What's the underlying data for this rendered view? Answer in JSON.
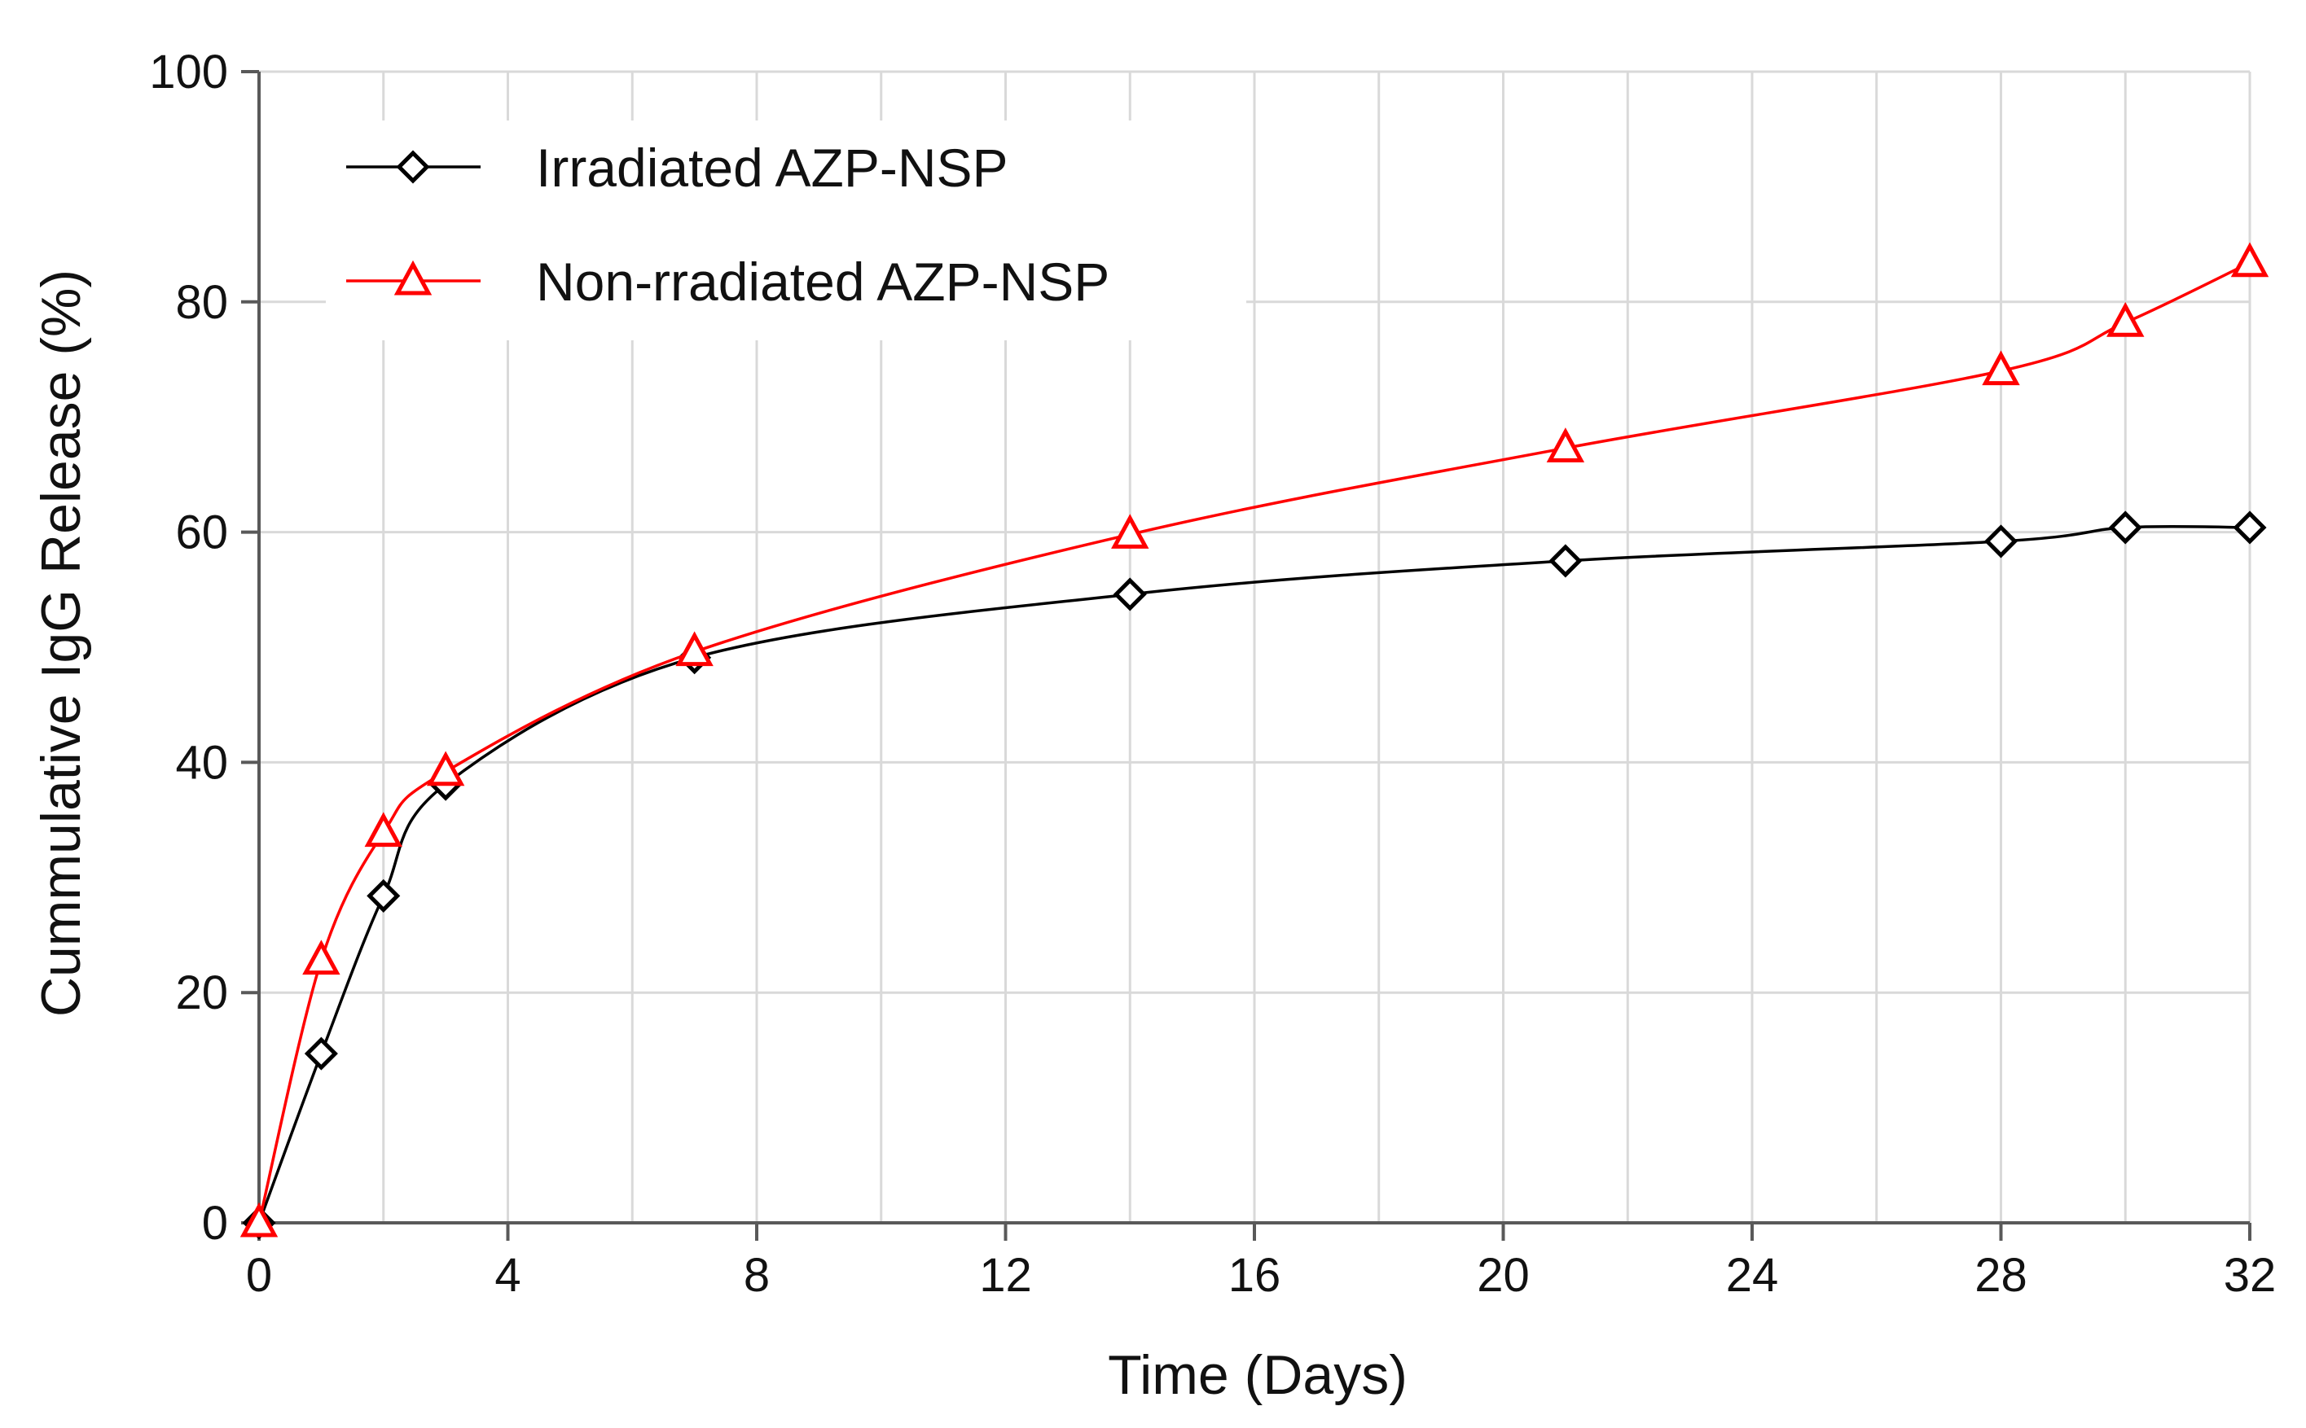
{
  "chart_data": {
    "type": "line",
    "title": "",
    "xlabel": "Time (Days)",
    "ylabel": "Cummulative IgG Release (%)",
    "xlim": [
      0,
      32
    ],
    "ylim": [
      0,
      100
    ],
    "xticks": [
      0,
      4,
      8,
      12,
      16,
      20,
      24,
      28,
      32
    ],
    "yticks": [
      0,
      20,
      40,
      60,
      80,
      100
    ],
    "x_minor_step": 2,
    "grid": true,
    "legend_position": "top-left",
    "series": [
      {
        "name": "Irradiated AZP-NSP",
        "color": "#000000",
        "marker": "diamond",
        "x": [
          0,
          1,
          2,
          3,
          7,
          14,
          21,
          28,
          30,
          32
        ],
        "y": [
          0,
          14.7,
          28.4,
          38.1,
          49.1,
          54.6,
          57.5,
          59.2,
          60.4,
          60.4
        ]
      },
      {
        "name": "Non-rradiated AZP-NSP",
        "color": "#ff0000",
        "marker": "triangle",
        "x": [
          0,
          1,
          2,
          3,
          7,
          14,
          21,
          28,
          30,
          32
        ],
        "y": [
          0,
          22.8,
          33.9,
          39.2,
          49.6,
          59.8,
          67.3,
          74.0,
          78.2,
          83.4
        ]
      }
    ]
  }
}
